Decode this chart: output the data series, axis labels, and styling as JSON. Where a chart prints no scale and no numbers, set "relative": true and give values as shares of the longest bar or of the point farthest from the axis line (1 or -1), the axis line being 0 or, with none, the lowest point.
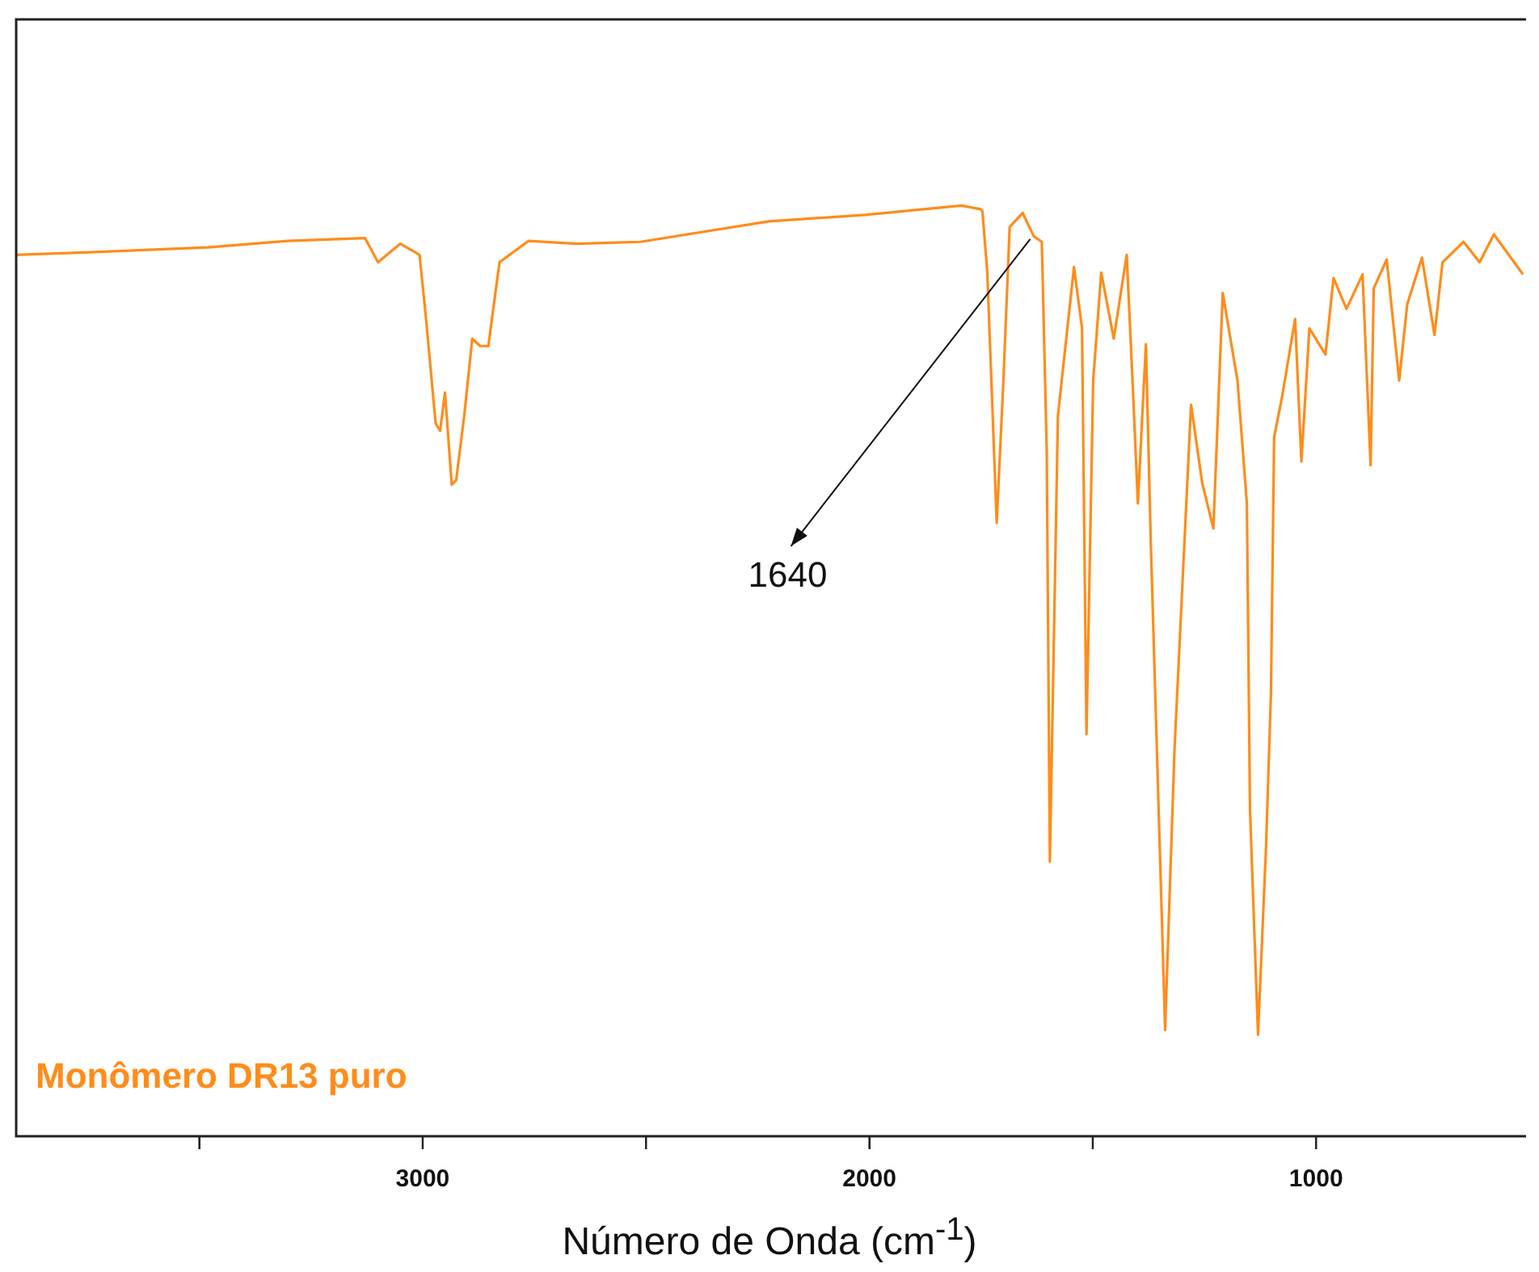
{
  "chart_data": {
    "type": "line",
    "xlabel": "Número de Onda (cm$^{-1}$)",
    "relative": true,
    "legend": "bottom left",
    "marker": "none",
    "line_style": "solid",
    "grid": false,
    "xlim": [
      3910,
      530
    ],
    "xticks": [
      {
        "value": 3500,
        "label": null
      },
      3000,
      {
        "value": 2500,
        "label": null
      },
      2000,
      {
        "value": 1500,
        "label": null
      },
      1000
    ],
    "annotations": [
      {
        "text": "1640",
        "x": 1640,
        "y": 0.964
      }
    ],
    "series": [
      {
        "name": "Monômero DR13 puro",
        "color": "#ff8c1a",
        "x": [
          3910,
          3732,
          3481,
          3302,
          3129,
          3100,
          3050,
          3007,
          2993,
          2971,
          2961,
          2950,
          2935,
          2925,
          2907,
          2889,
          2871,
          2853,
          2842,
          2828,
          2763,
          2655,
          2512,
          2225,
          2009,
          1794,
          1751,
          1747,
          1736,
          1715,
          1700,
          1686,
          1657,
          1632,
          1614,
          1603,
          1596,
          1578,
          1542,
          1524,
          1514,
          1499,
          1481,
          1453,
          1424,
          1410,
          1399,
          1381,
          1370,
          1338,
          1317,
          1280,
          1255,
          1230,
          1209,
          1176,
          1155,
          1148,
          1130,
          1112,
          1101,
          1094,
          1076,
          1047,
          1033,
          1015,
          979,
          961,
          932,
          896,
          878,
          871,
          842,
          814,
          796,
          763,
          735,
          717,
          670,
          634,
          602,
          537
        ],
        "values": [
          0.947,
          0.95,
          0.955,
          0.962,
          0.965,
          0.939,
          0.959,
          0.947,
          0.881,
          0.766,
          0.758,
          0.799,
          0.7,
          0.705,
          0.774,
          0.857,
          0.849,
          0.849,
          0.889,
          0.939,
          0.962,
          0.959,
          0.961,
          0.983,
          0.99,
          1,
          0.996,
          0.994,
          0.928,
          0.659,
          0.812,
          0.977,
          0.992,
          0.967,
          0.961,
          0.736,
          0.295,
          0.774,
          0.934,
          0.868,
          0.432,
          0.812,
          0.928,
          0.857,
          0.947,
          0.802,
          0.68,
          0.851,
          0.637,
          0.114,
          0.415,
          0.786,
          0.702,
          0.653,
          0.906,
          0.812,
          0.68,
          0.351,
          0.109,
          0.312,
          0.477,
          0.751,
          0.795,
          0.878,
          0.725,
          0.868,
          0.84,
          0.922,
          0.889,
          0.926,
          0.721,
          0.911,
          0.942,
          0.812,
          0.894,
          0.944,
          0.861,
          0.939,
          0.961,
          0.939,
          0.969,
          0.926
        ]
      }
    ]
  }
}
